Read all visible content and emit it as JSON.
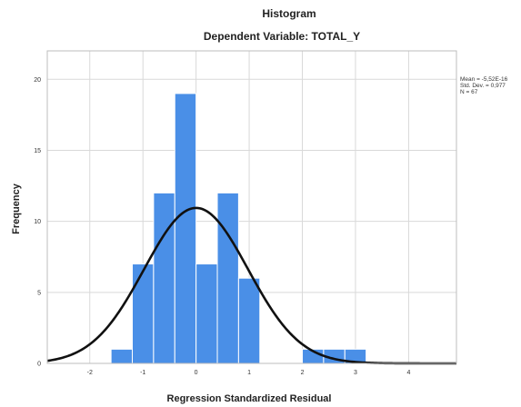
{
  "chart_data": {
    "type": "bar",
    "title": "Histogram",
    "subtitle": "Dependent Variable: TOTAL_Y",
    "xlabel": "Regression Standardized Residual",
    "ylabel": "Frequency",
    "xlim": [
      -2.8,
      4.9
    ],
    "ylim": [
      0,
      22
    ],
    "x_ticks": [
      -2,
      -1,
      0,
      1,
      2,
      3,
      4
    ],
    "x_tick_labels": [
      "-2",
      "-1",
      "0",
      "1",
      "2",
      "3",
      "4"
    ],
    "y_ticks": [
      0,
      5,
      10,
      15,
      20
    ],
    "y_tick_labels": [
      "0",
      "5",
      "10",
      "15",
      "20"
    ],
    "bin_width": 0.4,
    "bins": [
      {
        "start": -1.6,
        "end": -1.2,
        "count": 1
      },
      {
        "start": -1.2,
        "end": -0.8,
        "count": 7
      },
      {
        "start": -0.8,
        "end": -0.4,
        "count": 12
      },
      {
        "start": -0.4,
        "end": 0.0,
        "count": 19
      },
      {
        "start": 0.0,
        "end": 0.4,
        "count": 7
      },
      {
        "start": 0.4,
        "end": 0.8,
        "count": 12
      },
      {
        "start": 0.8,
        "end": 1.2,
        "count": 6
      },
      {
        "start": 2.0,
        "end": 2.4,
        "count": 1
      },
      {
        "start": 2.4,
        "end": 2.8,
        "count": 1
      },
      {
        "start": 2.8,
        "end": 3.2,
        "count": 1
      }
    ],
    "normal_curve": {
      "mean": 0,
      "std_dev": 0.977,
      "n": 67
    },
    "stats": [
      "Mean = -5,52E-16",
      "Std. Dev. = 0,977",
      "N = 67"
    ],
    "grid": true,
    "bar_color": "#4a8fe7",
    "curve_color": "#111111"
  }
}
